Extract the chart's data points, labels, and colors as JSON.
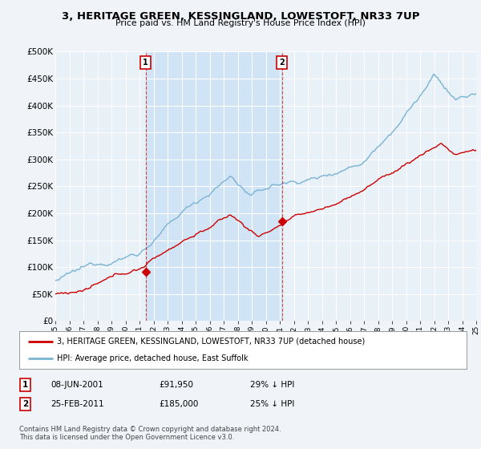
{
  "title": "3, HERITAGE GREEN, KESSINGLAND, LOWESTOFT, NR33 7UP",
  "subtitle": "Price paid vs. HM Land Registry's House Price Index (HPI)",
  "xlim": [
    1995,
    2025
  ],
  "ylim": [
    0,
    500000
  ],
  "yticks": [
    0,
    50000,
    100000,
    150000,
    200000,
    250000,
    300000,
    350000,
    400000,
    450000,
    500000
  ],
  "ytick_labels": [
    "£0",
    "£50K",
    "£100K",
    "£150K",
    "£200K",
    "£250K",
    "£300K",
    "£350K",
    "£400K",
    "£450K",
    "£500K"
  ],
  "fig_bg_color": "#f0f4f8",
  "plot_bg_color": "#e8f0f8",
  "shade_bg_color": "#d0e4f5",
  "hpi_color": "#7ab3d4",
  "price_color": "#cc0000",
  "marker1_x": 2001.44,
  "marker1_y": 91950,
  "marker2_x": 2011.15,
  "marker2_y": 185000,
  "marker1_label": "1",
  "marker2_label": "2",
  "legend_line1": "3, HERITAGE GREEN, KESSINGLAND, LOWESTOFT, NR33 7UP (detached house)",
  "legend_line2": "HPI: Average price, detached house, East Suffolk",
  "annot1_num": "1",
  "annot1_date": "08-JUN-2001",
  "annot1_price": "£91,950",
  "annot1_hpi": "29% ↓ HPI",
  "annot2_num": "2",
  "annot2_date": "25-FEB-2011",
  "annot2_price": "£185,000",
  "annot2_hpi": "25% ↓ HPI",
  "footer": "Contains HM Land Registry data © Crown copyright and database right 2024.\nThis data is licensed under the Open Government Licence v3.0."
}
